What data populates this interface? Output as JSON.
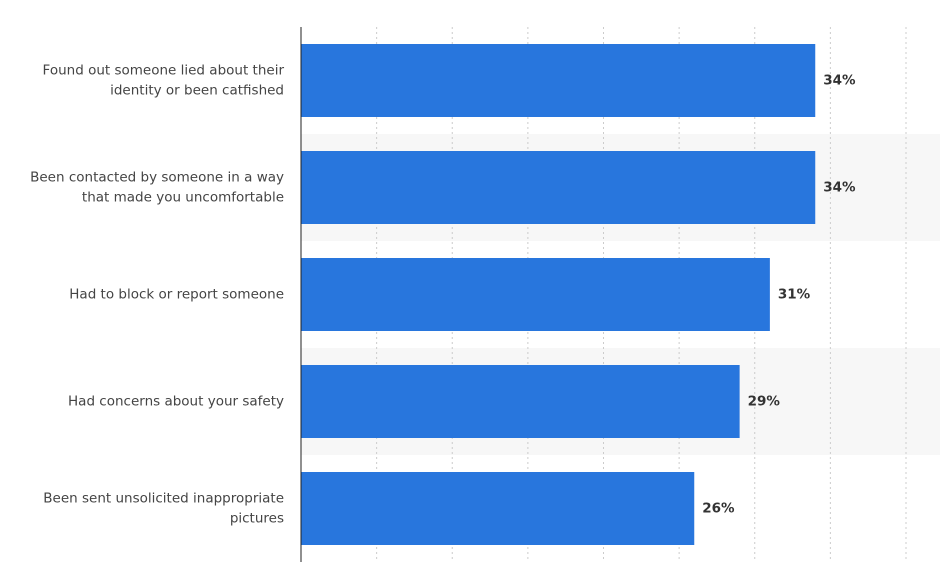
{
  "chart_data": {
    "type": "bar",
    "orientation": "horizontal",
    "categories": [
      [
        "Found out someone lied about their",
        "identity or been catfished"
      ],
      [
        "Been contacted by someone in a way",
        "that made you uncomfortable"
      ],
      [
        "Had to block or report someone"
      ],
      [
        "Had concerns about your safety"
      ],
      [
        "Been sent unsolicited inappropriate",
        "pictures"
      ]
    ],
    "values": [
      34,
      34,
      31,
      29,
      26
    ],
    "value_labels": [
      "34%",
      "34%",
      "31%",
      "29%",
      "26%"
    ],
    "color": "#2876dd",
    "xlim": [
      0,
      40
    ],
    "xticks": [
      0,
      5,
      10,
      15,
      20,
      25,
      30,
      35,
      40
    ],
    "grid": true
  }
}
